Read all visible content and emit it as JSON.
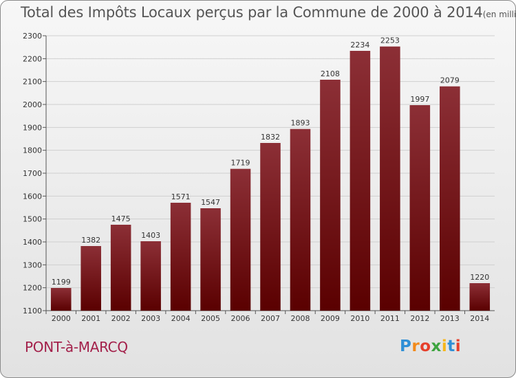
{
  "header": {
    "title": "Total des Impôts Locaux perçus par la Commune de 2000 à 2014",
    "unit": "(en milliers d'€)"
  },
  "footer": {
    "commune": "PONT-à-MARCQ",
    "logo_letters": [
      "P",
      "r",
      "o",
      "x",
      "i",
      "t",
      "i"
    ],
    "logo_colors": [
      "#2f8fd6",
      "#f28a1b",
      "#e63f2b",
      "#3da43f",
      "#f6b61b",
      "#2f8fd6",
      "#e63f2b"
    ]
  },
  "colors": {
    "bar_top": "#8c2f36",
    "bar_bottom": "#5a0000",
    "grid": "#cfcfcf"
  },
  "chart_data": {
    "type": "bar",
    "title": "Total des Impôts Locaux perçus par la Commune de 2000 à 2014",
    "xlabel": "",
    "ylabel": "",
    "categories": [
      "2000",
      "2001",
      "2002",
      "2003",
      "2004",
      "2005",
      "2006",
      "2007",
      "2008",
      "2009",
      "2010",
      "2011",
      "2012",
      "2013",
      "2014"
    ],
    "values": [
      1199,
      1382,
      1475,
      1403,
      1571,
      1547,
      1719,
      1832,
      1893,
      2108,
      2234,
      2253,
      1997,
      2079,
      1220
    ],
    "ylim": [
      1100,
      2300
    ],
    "yticks": [
      1100,
      1200,
      1300,
      1400,
      1500,
      1600,
      1700,
      1800,
      1900,
      2000,
      2100,
      2200,
      2300
    ],
    "grid": true
  }
}
